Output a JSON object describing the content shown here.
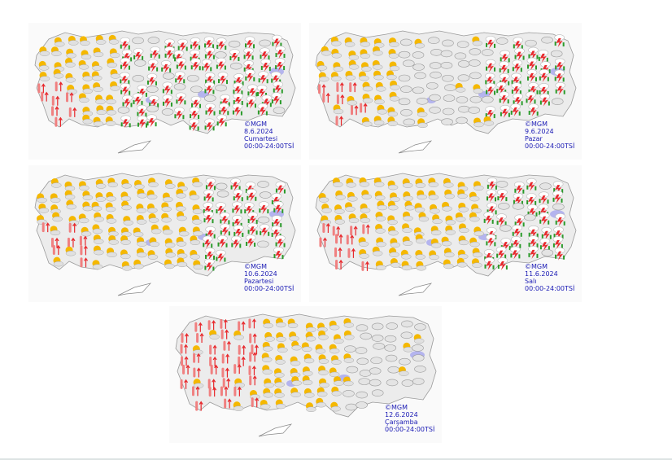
{
  "maps": [
    {
      "copyright": "©MGM",
      "date": "8.6.2024",
      "day": "Cumartesi",
      "period": "00:00-24:00TSİ",
      "conditions": {
        "west": "partly-cloudy",
        "central": "thunderstorm",
        "east": "thunderstorm",
        "coast_south_west": "hot"
      }
    },
    {
      "copyright": "©MGM",
      "date": "9.6.2024",
      "day": "Pazar",
      "period": "00:00-24:00TSİ",
      "conditions": {
        "west": "partly-cloudy",
        "central": "cloudy",
        "east": "thunderstorm",
        "coast_south_west": "hot"
      }
    },
    {
      "copyright": "©MGM",
      "date": "10.6.2024",
      "day": "Pazartesi",
      "period": "00:00-24:00TSİ",
      "conditions": {
        "west": "partly-cloudy",
        "central": "partly-cloudy",
        "east": "thunderstorm",
        "coast_south_west": "hot"
      }
    },
    {
      "copyright": "©MGM",
      "date": "11.6.2024",
      "day": "Salı",
      "period": "00:00-24:00TSİ",
      "conditions": {
        "west": "partly-cloudy",
        "central": "partly-cloudy",
        "east": "thunderstorm",
        "coast_south_west": "hot"
      }
    },
    {
      "copyright": "©MGM",
      "date": "12.6.2024",
      "day": "Çarşamba",
      "period": "00:00-24:00TSİ",
      "conditions": {
        "west": "hot",
        "central": "partly-cloudy",
        "east": "cloudy",
        "coast_south_west": "hot"
      }
    }
  ],
  "colors": {
    "caption": "#1a1ab4",
    "land": "#ececec",
    "border": "#9a9a9a",
    "lake": "#b4b4ee",
    "thunder": "#e8282c",
    "hot": "#f08080",
    "sun": "#f5b800"
  }
}
